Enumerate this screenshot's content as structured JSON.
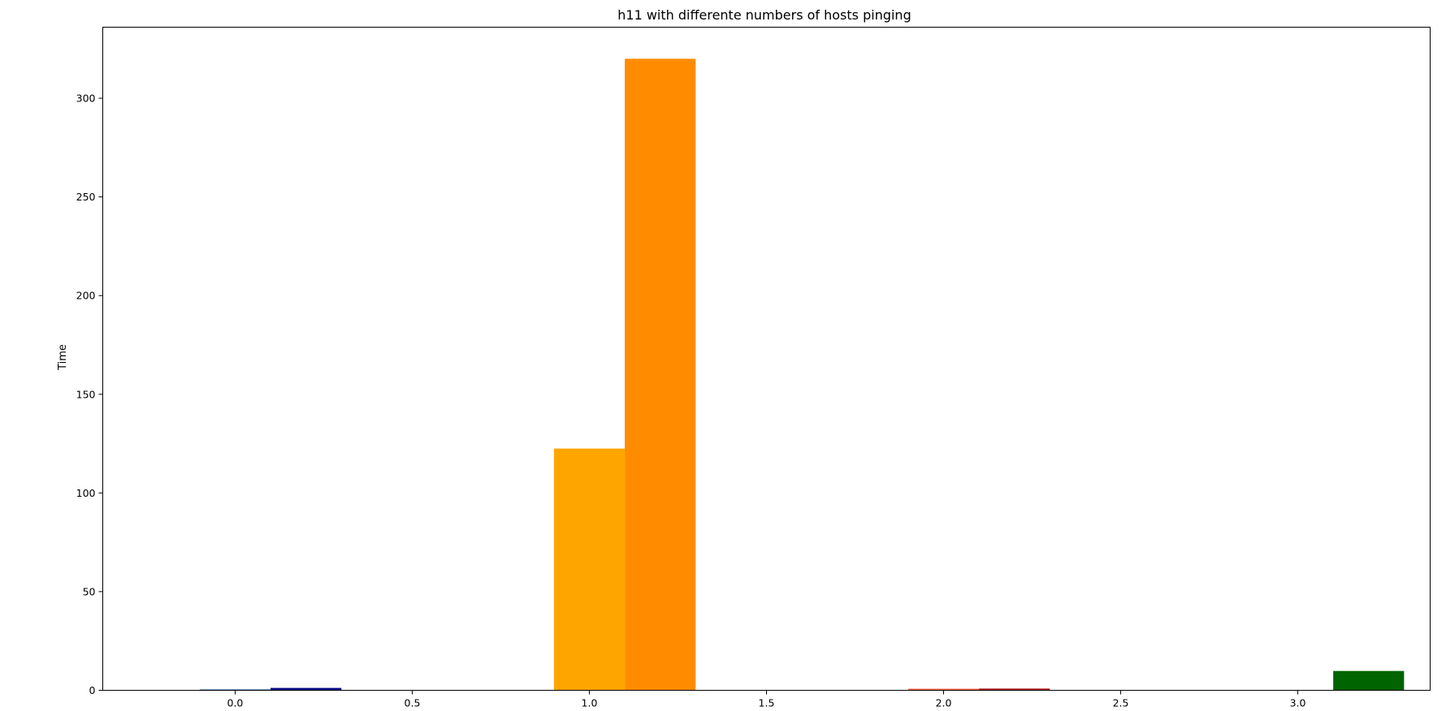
{
  "chart_data": {
    "type": "bar",
    "title": "h11 with differente numbers of hosts pinging",
    "xlabel": "",
    "ylabel": "Time",
    "xlim": [
      -0.3737,
      3.3737
    ],
    "ylim": [
      0,
      336
    ],
    "xticks": [
      0.0,
      0.5,
      1.0,
      1.5,
      2.0,
      2.5,
      3.0
    ],
    "xtick_labels": [
      "0.0",
      "0.5",
      "1.0",
      "1.5",
      "2.0",
      "2.5",
      "3.0"
    ],
    "yticks": [
      0,
      50,
      100,
      150,
      200,
      250,
      300
    ],
    "ytick_labels": [
      "0",
      "50",
      "100",
      "150",
      "200",
      "250",
      "300"
    ],
    "bar_width": 0.2,
    "grid": false,
    "bars": [
      {
        "x": 0.0,
        "value": 0.5,
        "color": "#4682b4"
      },
      {
        "x": 0.2,
        "value": 1.2,
        "color": "#00008b"
      },
      {
        "x": 1.0,
        "value": 122.5,
        "color": "#ffa500"
      },
      {
        "x": 1.2,
        "value": 320.0,
        "color": "#ff8c00"
      },
      {
        "x": 2.0,
        "value": 0.8,
        "color": "#ff6347"
      },
      {
        "x": 2.2,
        "value": 0.9,
        "color": "#b22222"
      },
      {
        "x": 3.2,
        "value": 9.8,
        "color": "#006400"
      }
    ]
  }
}
